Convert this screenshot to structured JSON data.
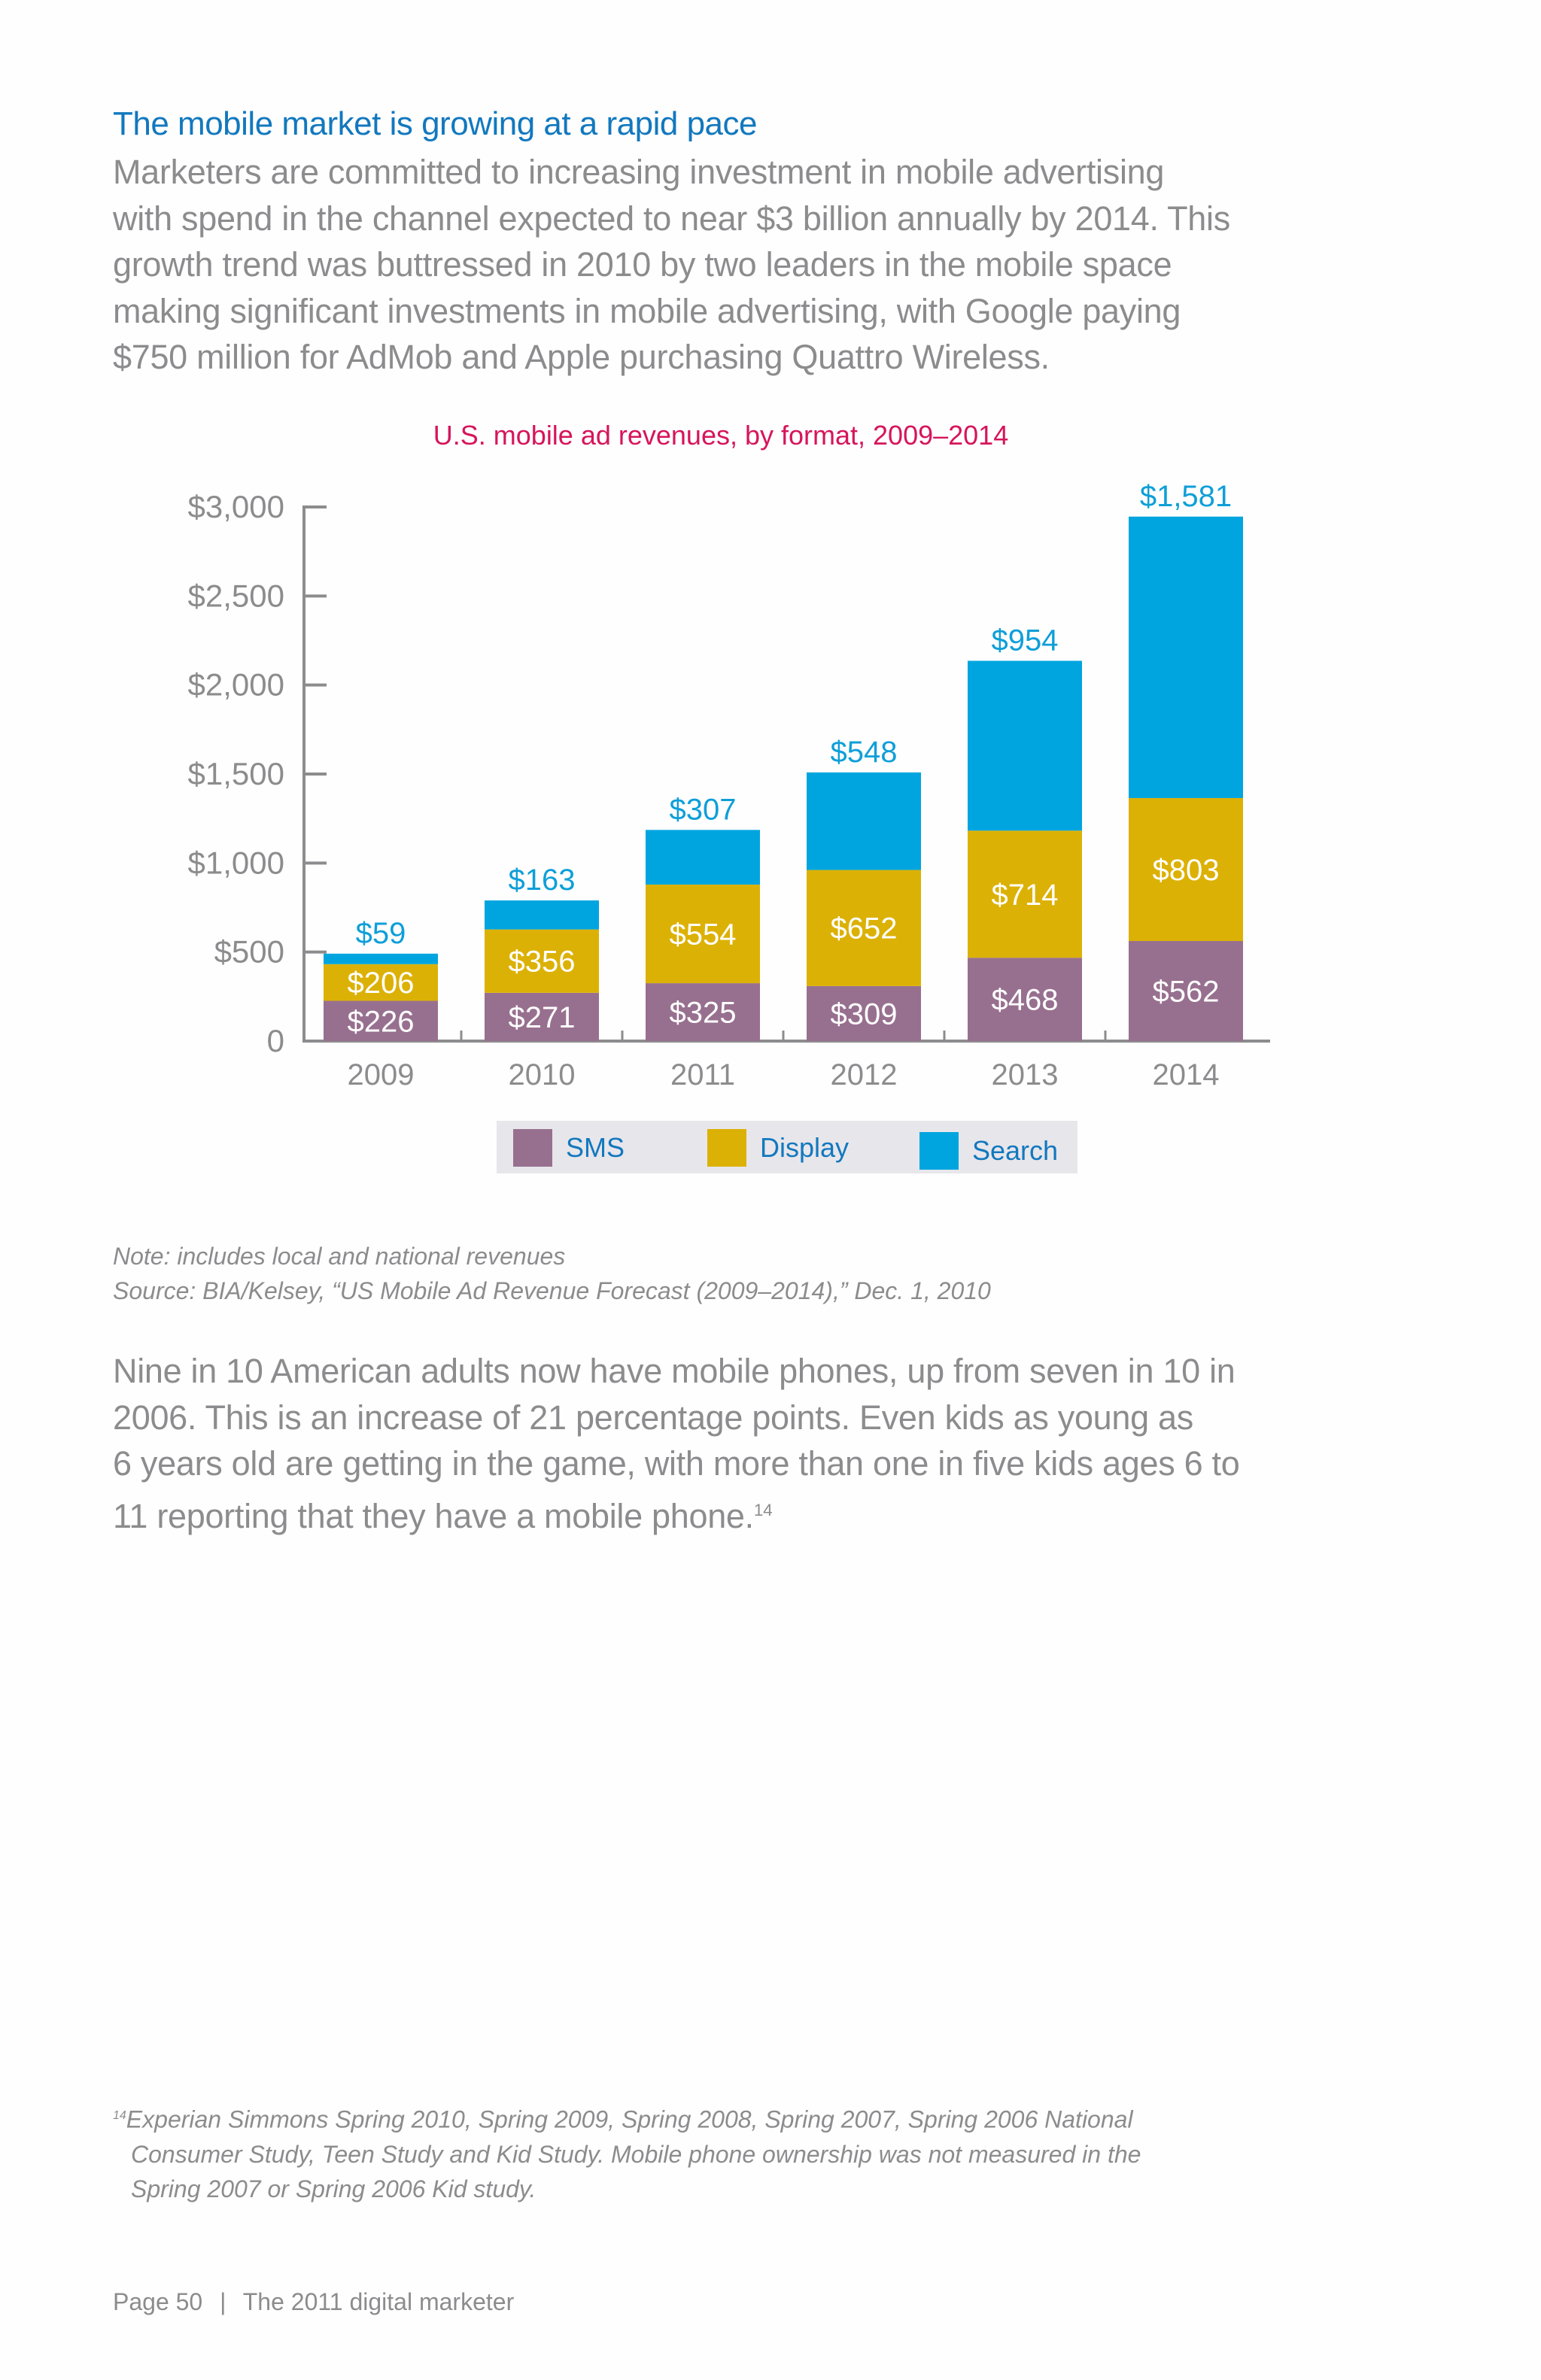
{
  "heading": "The mobile market is growing at a rapid pace",
  "intro_lines": [
    "Marketers are committed to increasing investment in mobile advertising",
    "with spend in the channel expected to near $3 billion annually by 2014. This",
    "growth trend was buttressed in 2010 by two leaders in the mobile space",
    "making significant investments in mobile advertising, with Google paying",
    "$750 million for AdMob and Apple purchasing Quattro Wireless."
  ],
  "chart_data": {
    "type": "bar",
    "stacked": true,
    "title": "U.S. mobile ad revenues, by format, 2009–2014",
    "categories": [
      "2009",
      "2010",
      "2011",
      "2012",
      "2013",
      "2014"
    ],
    "series": [
      {
        "name": "SMS",
        "color": "#98708f",
        "values": [
          226,
          271,
          325,
          309,
          468,
          562
        ],
        "labels": [
          "$226",
          "$271",
          "$325",
          "$309",
          "$468",
          "$562"
        ]
      },
      {
        "name": "Display",
        "color": "#dcb106",
        "values": [
          206,
          356,
          554,
          652,
          714,
          803
        ],
        "labels": [
          "$206",
          "$356",
          "$554",
          "$652",
          "$714",
          "$803"
        ]
      },
      {
        "name": "Search",
        "color": "#00a5df",
        "values": [
          59,
          163,
          307,
          548,
          954,
          1581
        ],
        "labels": [
          "$59",
          "$163",
          "$307",
          "$548",
          "$954",
          "$1,581"
        ]
      }
    ],
    "ylim": [
      0,
      3000
    ],
    "yticks": [
      0,
      500,
      1000,
      1500,
      2000,
      2500,
      3000
    ],
    "ytick_labels": [
      "0",
      "$500",
      "$1,000",
      "$1,500",
      "$2,000",
      "$2,500",
      "$3,000"
    ],
    "grid": false,
    "legend": "bottom"
  },
  "note": "Note: includes local and national revenues",
  "source": "Source: BIA/Kelsey, “US Mobile Ad Revenue Forecast (2009–2014),” Dec. 1, 2010",
  "body2_lines": [
    "Nine in 10 American adults now have mobile phones, up from seven in 10 in",
    "2006. This is an increase of 21 percentage points. Even kids as young as",
    "6 years old are getting in the game, with more than one in five kids ages 6 to",
    "11 reporting that they have a mobile phone."
  ],
  "body2_ref": "14",
  "footnote": {
    "marker": "14",
    "lines": [
      "Experian Simmons Spring 2010, Spring 2009, Spring 2008, Spring 2007, Spring 2006 National",
      "Consumer Study, Teen Study and Kid Study. Mobile phone ownership was not measured in the",
      "Spring 2007 or Spring 2006 Kid study."
    ]
  },
  "footer": {
    "page": "Page 50",
    "separator": "|",
    "publication": "The 2011 digital marketer"
  }
}
